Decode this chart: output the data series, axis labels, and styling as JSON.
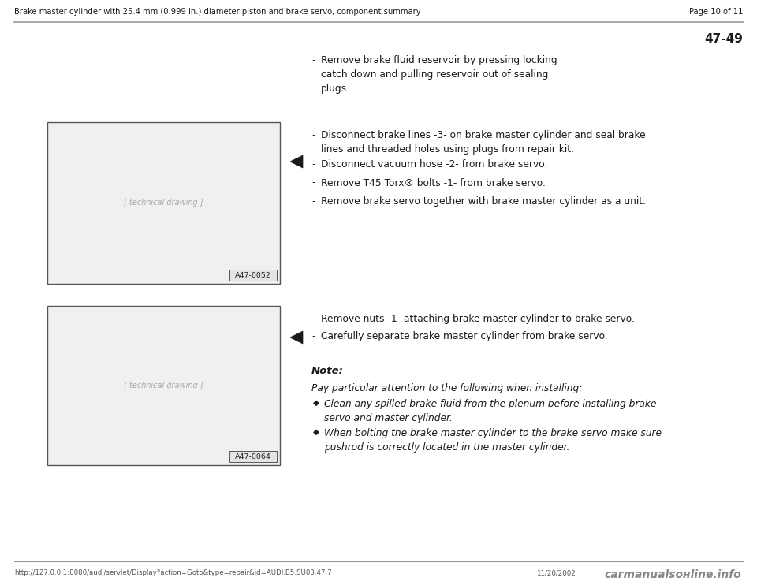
{
  "header_text": "Brake master cylinder with 25.4 mm (0.999 in.) diameter piston and brake servo, component summary",
  "page_text": "Page 10 of 11",
  "page_number": "47-49",
  "bg_color": "#ffffff",
  "section1_bullet": "Remove brake fluid reservoir by pressing locking\ncatch down and pulling reservoir out of sealing\nplugs.",
  "section2_bullets": [
    "Disconnect brake lines -3- on brake master cylinder and seal brake\nlines and threaded holes using plugs from repair kit.",
    "Disconnect vacuum hose -2- from brake servo.",
    "Remove T45 Torx® bolts -1- from brake servo.",
    "Remove brake servo together with brake master cylinder as a unit."
  ],
  "section3_bullets": [
    "Remove nuts -1- attaching brake master cylinder to brake servo.",
    "Carefully separate brake master cylinder from brake servo."
  ],
  "note_label": "Note:",
  "note_intro": "Pay particular attention to the following when installing:",
  "note_bullets": [
    "Clean any spilled brake fluid from the plenum before installing brake\nservo and master cylinder.",
    "When bolting the brake master cylinder to the brake servo make sure\npushrod is correctly located in the master cylinder."
  ],
  "img1_label": "A47-0052",
  "img2_label": "A47-0064",
  "footer_url": "http://127.0.0.1:8080/audi/servlet/Display?action=Goto&type=repair&id=AUDI.B5.SU03.47.7",
  "footer_date": "11/20/2002",
  "footer_watermark": "carmanualsонline.info",
  "text_color": "#1a1a1a",
  "line_color": "#999999"
}
